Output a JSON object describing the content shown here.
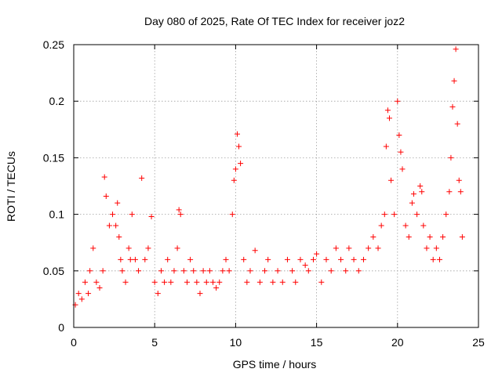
{
  "chart_data": {
    "type": "scatter",
    "title": "Day 080 of 2025, Rate Of TEC Index for receiver joz2",
    "xlabel": "GPS time / hours",
    "ylabel": "ROTI / TECUs",
    "xlim": [
      0,
      25
    ],
    "ylim": [
      0,
      0.25
    ],
    "xticks": [
      0,
      5,
      10,
      15,
      20,
      25
    ],
    "yticks": [
      0,
      0.05,
      0.1,
      0.15,
      0.2,
      0.25
    ],
    "xtick_labels": [
      "0",
      "5",
      "10",
      "15",
      "20",
      "25"
    ],
    "ytick_labels": [
      "0",
      "0.05",
      "0.1",
      "0.15",
      "0.2",
      "0.25"
    ],
    "grid": true,
    "marker": "+",
    "color": "#ff0000",
    "series": [
      {
        "name": "ROTI",
        "x": [
          0.1,
          0.3,
          0.5,
          0.7,
          0.9,
          1.0,
          1.2,
          1.4,
          1.6,
          1.8,
          1.9,
          2.0,
          2.2,
          2.4,
          2.6,
          2.7,
          2.8,
          2.9,
          3.0,
          3.2,
          3.4,
          3.5,
          3.6,
          3.8,
          4.0,
          4.2,
          4.4,
          4.6,
          4.8,
          5.0,
          5.2,
          5.4,
          5.6,
          5.8,
          6.0,
          6.2,
          6.4,
          6.5,
          6.6,
          6.8,
          7.0,
          7.2,
          7.4,
          7.6,
          7.8,
          8.0,
          8.2,
          8.4,
          8.6,
          8.8,
          9.0,
          9.2,
          9.4,
          9.6,
          9.8,
          9.9,
          10.0,
          10.1,
          10.2,
          10.3,
          10.5,
          10.7,
          10.9,
          11.2,
          11.5,
          11.8,
          12.0,
          12.3,
          12.6,
          12.9,
          13.2,
          13.5,
          13.7,
          14.0,
          14.3,
          14.5,
          14.8,
          15.0,
          15.3,
          15.6,
          15.9,
          16.2,
          16.5,
          16.8,
          17.0,
          17.3,
          17.6,
          17.9,
          18.2,
          18.5,
          18.8,
          19.0,
          19.2,
          19.3,
          19.4,
          19.5,
          19.6,
          19.8,
          20.0,
          20.1,
          20.2,
          20.3,
          20.5,
          20.7,
          20.9,
          21.0,
          21.2,
          21.4,
          21.5,
          21.6,
          21.8,
          22.0,
          22.2,
          22.4,
          22.6,
          22.8,
          23.0,
          23.2,
          23.3,
          23.4,
          23.5,
          23.6,
          23.7,
          23.8,
          23.9,
          24.0
        ],
        "y": [
          0.02,
          0.03,
          0.025,
          0.04,
          0.03,
          0.05,
          0.07,
          0.04,
          0.035,
          0.05,
          0.133,
          0.116,
          0.09,
          0.1,
          0.09,
          0.11,
          0.08,
          0.06,
          0.05,
          0.04,
          0.07,
          0.06,
          0.1,
          0.06,
          0.05,
          0.132,
          0.06,
          0.07,
          0.098,
          0.04,
          0.03,
          0.05,
          0.04,
          0.06,
          0.04,
          0.05,
          0.07,
          0.104,
          0.1,
          0.05,
          0.04,
          0.06,
          0.05,
          0.04,
          0.03,
          0.05,
          0.04,
          0.05,
          0.04,
          0.035,
          0.04,
          0.05,
          0.06,
          0.05,
          0.1,
          0.13,
          0.14,
          0.171,
          0.16,
          0.145,
          0.06,
          0.04,
          0.05,
          0.068,
          0.04,
          0.05,
          0.06,
          0.04,
          0.05,
          0.04,
          0.06,
          0.05,
          0.04,
          0.06,
          0.055,
          0.05,
          0.06,
          0.065,
          0.04,
          0.06,
          0.05,
          0.07,
          0.06,
          0.05,
          0.07,
          0.06,
          0.05,
          0.06,
          0.07,
          0.08,
          0.07,
          0.09,
          0.1,
          0.16,
          0.192,
          0.185,
          0.13,
          0.1,
          0.2,
          0.17,
          0.155,
          0.14,
          0.09,
          0.08,
          0.11,
          0.118,
          0.1,
          0.125,
          0.12,
          0.09,
          0.07,
          0.08,
          0.06,
          0.07,
          0.06,
          0.08,
          0.1,
          0.12,
          0.15,
          0.195,
          0.218,
          0.246,
          0.18,
          0.13,
          0.12,
          0.08
        ]
      }
    ]
  }
}
